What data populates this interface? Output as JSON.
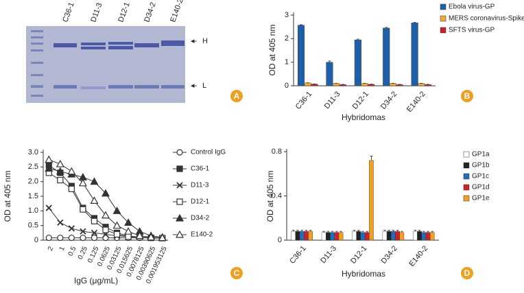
{
  "gel": {
    "lanes": [
      "C36-1",
      "D11-3",
      "D12-1",
      "D34-2",
      "E140-2"
    ],
    "heavy": "H",
    "light": "L",
    "panel_label": "A"
  },
  "chart_data": [
    {
      "type": "bar",
      "panel_label": "B",
      "x_label": "Hybridomas",
      "y_label": "OD at 405 nm",
      "categories": [
        "C36-1",
        "D11-3",
        "D12-1",
        "D34-2",
        "E140-2"
      ],
      "series": [
        {
          "name": "Ebola virus-GP",
          "color": "#1f5fa8",
          "values": [
            2.57,
            1.0,
            1.95,
            2.45,
            2.67
          ],
          "errors": [
            0.02,
            0.05,
            0.03,
            0.03,
            0.02
          ]
        },
        {
          "name": "MERS coronavirus-Spike",
          "color": "#f0a830",
          "values": [
            0.12,
            0.1,
            0.1,
            0.1,
            0.1
          ],
          "errors": [
            0.01,
            0.01,
            0.01,
            0.01,
            0.01
          ]
        },
        {
          "name": "SFTS virus-GP",
          "color": "#c8202a",
          "values": [
            0.07,
            0.05,
            0.06,
            0.05,
            0.05
          ],
          "errors": [
            0.01,
            0.01,
            0.01,
            0.01,
            0.01
          ]
        }
      ],
      "ylim": [
        0,
        3
      ],
      "yticks": [
        0,
        1,
        2,
        3
      ]
    },
    {
      "type": "line",
      "panel_label": "C",
      "x_label": "IgG (μg/mL)",
      "y_label": "OD at 405 nm",
      "categories": [
        "2",
        "1",
        "0.5",
        "0.25",
        "0.125",
        "0.0625",
        "0.03125",
        "0.015625",
        "0.0078125",
        "0.00390625",
        "0.001953125"
      ],
      "series": [
        {
          "name": "Control IgG",
          "color": "#333333",
          "marker": "circle-open",
          "values": [
            0.08,
            0.08,
            0.08,
            0.08,
            0.08,
            0.08,
            0.08,
            0.08,
            0.08,
            0.08,
            0.08
          ]
        },
        {
          "name": "C36-1",
          "color": "#333333",
          "marker": "square-filled",
          "values": [
            2.55,
            2.3,
            1.85,
            1.1,
            0.75,
            0.45,
            0.25,
            0.15,
            0.1,
            0.08,
            0.07
          ]
        },
        {
          "name": "D11-3",
          "color": "#333333",
          "marker": "cross",
          "values": [
            1.1,
            0.6,
            0.4,
            0.3,
            0.25,
            0.2,
            0.15,
            0.12,
            0.1,
            0.08,
            0.07
          ]
        },
        {
          "name": "D12-1",
          "color": "#333333",
          "marker": "square-open",
          "values": [
            2.3,
            2.05,
            1.75,
            1.05,
            0.65,
            0.35,
            0.2,
            0.12,
            0.1,
            0.08,
            0.07
          ]
        },
        {
          "name": "D34-2",
          "color": "#333333",
          "marker": "triangle-filled",
          "values": [
            2.45,
            2.35,
            2.25,
            2.15,
            2.0,
            1.6,
            1.0,
            0.6,
            0.3,
            0.15,
            0.1
          ]
        },
        {
          "name": "E140-2",
          "color": "#333333",
          "marker": "triangle-open",
          "values": [
            2.75,
            2.6,
            2.35,
            1.95,
            1.35,
            0.85,
            0.5,
            0.3,
            0.15,
            0.1,
            0.08
          ]
        }
      ],
      "ylim": [
        0,
        3
      ],
      "yticks": [
        0,
        0.5,
        {
          "value": 1,
          "label": "1.0"
        },
        1.5,
        {
          "value": 2,
          "label": "2.0"
        },
        2.5,
        {
          "value": 3,
          "label": "3.0"
        }
      ]
    },
    {
      "type": "bar",
      "panel_label": "D",
      "x_label": "Hybridomas",
      "y_label": "OD at 405 nm",
      "categories": [
        "C36-1",
        "D11-3",
        "D12-1",
        "D34-2",
        "E140-2"
      ],
      "series": [
        {
          "name": "GP1a",
          "color": "#ffffff",
          "values": [
            0.08,
            0.07,
            0.08,
            0.08,
            0.08
          ],
          "errors": [
            0.01,
            0.01,
            0.01,
            0.01,
            0.01
          ]
        },
        {
          "name": "GP1b",
          "color": "#222222",
          "values": [
            0.08,
            0.07,
            0.08,
            0.08,
            0.08
          ],
          "errors": [
            0.01,
            0.01,
            0.01,
            0.01,
            0.01
          ]
        },
        {
          "name": "GP1c",
          "color": "#1f6fb8",
          "values": [
            0.08,
            0.07,
            0.07,
            0.08,
            0.07
          ],
          "errors": [
            0.01,
            0.01,
            0.01,
            0.01,
            0.01
          ]
        },
        {
          "name": "GP1d",
          "color": "#d0202a",
          "values": [
            0.08,
            0.07,
            0.07,
            0.08,
            0.07
          ],
          "errors": [
            0.01,
            0.01,
            0.01,
            0.01,
            0.01
          ]
        },
        {
          "name": "GP1e",
          "color": "#f0a020",
          "values": [
            0.08,
            0.07,
            0.72,
            0.07,
            0.07
          ],
          "errors": [
            0.01,
            0.01,
            0.04,
            0.01,
            0.01
          ]
        }
      ],
      "ylim": [
        0,
        0.8
      ],
      "yticks": [
        0,
        0.4,
        0.8
      ]
    }
  ]
}
